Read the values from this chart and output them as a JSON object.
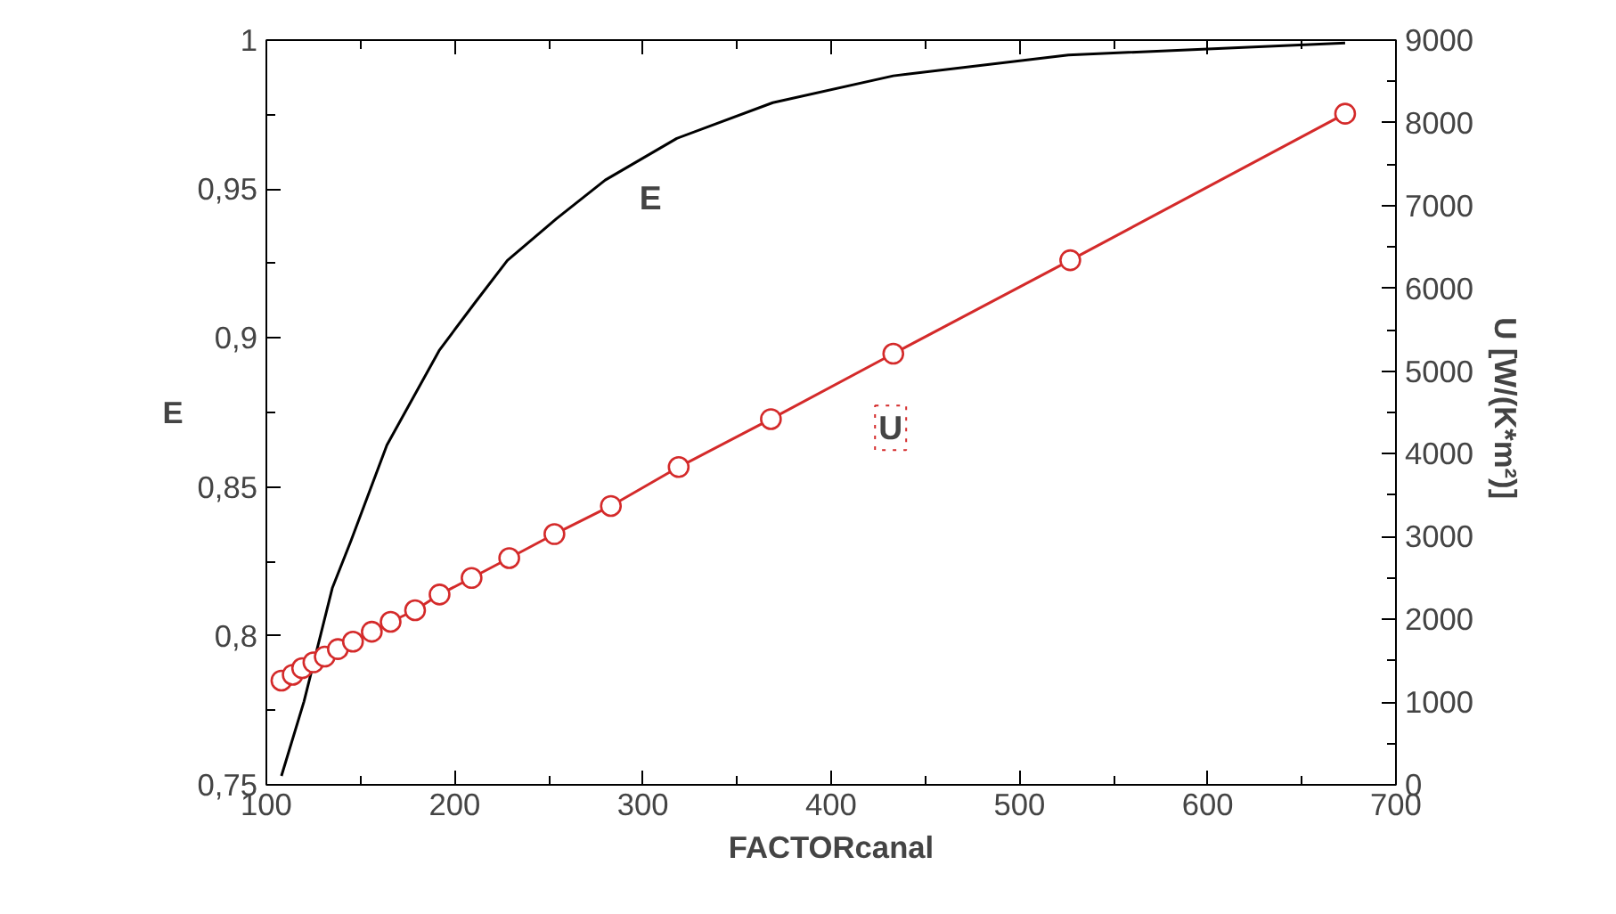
{
  "chart_data": {
    "type": "line",
    "xlabel": "FACTORcanal",
    "ylabel": "E",
    "y2label": "U  [W/(K*m²)]",
    "xlim": [
      100,
      700
    ],
    "xticks": [
      100,
      200,
      300,
      400,
      500,
      600,
      700
    ],
    "ylim": [
      0.75,
      1
    ],
    "yticks": [
      {
        "value": 0.75,
        "label": "0,75"
      },
      {
        "value": 0.8,
        "label": "0,8"
      },
      {
        "value": 0.85,
        "label": "0,85"
      },
      {
        "value": 0.9,
        "label": "0,9"
      },
      {
        "value": 0.95,
        "label": "0,95"
      },
      {
        "value": 1,
        "label": "1"
      }
    ],
    "y2lim": [
      0,
      9000
    ],
    "y2ticks": [
      0,
      1000,
      2000,
      3000,
      4000,
      5000,
      6000,
      7000,
      8000,
      9000
    ],
    "grid": false,
    "series": [
      {
        "name": "E",
        "color": "#000000",
        "marker": "none",
        "x": [
          108,
          120,
          135,
          145,
          164,
          192,
          211,
          228,
          254,
          280,
          318,
          369,
          433,
          526,
          673
        ],
        "values": [
          0.753,
          0.778,
          0.816,
          0.832,
          0.864,
          0.896,
          0.912,
          0.926,
          0.94,
          0.953,
          0.967,
          0.979,
          0.988,
          0.995,
          0.999
        ]
      },
      {
        "name": "U",
        "color": "#d42a2a",
        "marker": "circle",
        "axis": "y2",
        "x": [
          108,
          114,
          119,
          125,
          131,
          138,
          146,
          156,
          166,
          179,
          192,
          209,
          229,
          253,
          283,
          319,
          368,
          433,
          527,
          673
        ],
        "values": [
          1260,
          1330,
          1410,
          1480,
          1550,
          1640,
          1730,
          1850,
          1970,
          2110,
          2300,
          2500,
          2740,
          3030,
          3370,
          3840,
          4420,
          5210,
          6340,
          8110
        ]
      }
    ]
  }
}
